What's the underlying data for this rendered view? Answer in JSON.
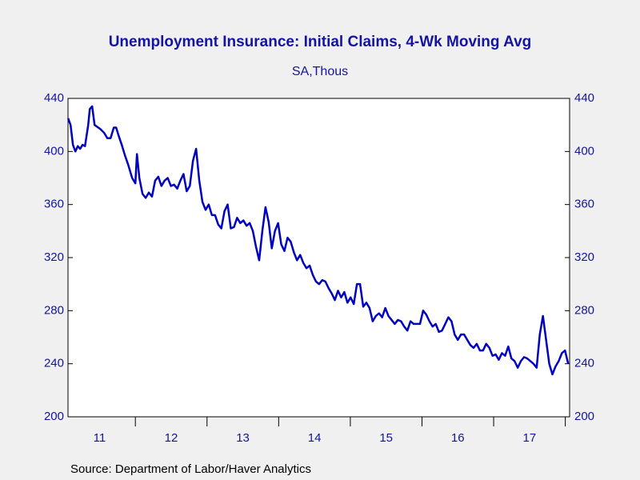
{
  "chart_data": {
    "type": "line",
    "title": "Unemployment Insurance: Initial Claims, 4-Wk Moving Avg",
    "subtitle": "SA,Thous",
    "source": "Source:  Department of Labor/Haver Analytics",
    "x": [
      2011.062,
      2011.096,
      2011.129,
      2011.163,
      2011.196,
      2011.23,
      2011.263,
      2011.297,
      2011.342,
      2011.364,
      2011.397,
      2011.431,
      2011.509,
      2011.565,
      2011.609,
      2011.654,
      2011.699,
      2011.732,
      2011.766,
      2011.81,
      2011.855,
      2011.9,
      2011.955,
      2012.0,
      2012.022,
      2012.056,
      2012.1,
      2012.144,
      2012.188,
      2012.232,
      2012.276,
      2012.32,
      2012.364,
      2012.408,
      2012.452,
      2012.496,
      2012.54,
      2012.584,
      2012.628,
      2012.672,
      2012.716,
      2012.76,
      2012.804,
      2012.848,
      2012.892,
      2012.936,
      2012.98,
      2013.024,
      2013.068,
      2013.112,
      2013.156,
      2013.2,
      2013.244,
      2013.288,
      2013.332,
      2013.376,
      2013.42,
      2013.464,
      2013.508,
      2013.552,
      2013.596,
      2013.64,
      2013.684,
      2013.728,
      2013.772,
      2013.816,
      2013.86,
      2013.904,
      2013.948,
      2013.992,
      2014.036,
      2014.08,
      2014.124,
      2014.168,
      2014.212,
      2014.256,
      2014.3,
      2014.344,
      2014.388,
      2014.432,
      2014.476,
      2014.52,
      2014.564,
      2014.608,
      2014.652,
      2014.696,
      2014.74,
      2014.784,
      2014.828,
      2014.872,
      2014.916,
      2014.96,
      2015.004,
      2015.048,
      2015.092,
      2015.136,
      2015.18,
      2015.224,
      2015.268,
      2015.312,
      2015.356,
      2015.4,
      2015.444,
      2015.488,
      2015.532,
      2015.576,
      2015.62,
      2015.664,
      2015.708,
      2015.752,
      2015.796,
      2015.84,
      2015.884,
      2015.928,
      2015.972,
      2016.016,
      2016.06,
      2016.104,
      2016.148,
      2016.192,
      2016.236,
      2016.28,
      2016.324,
      2016.368,
      2016.412,
      2016.456,
      2016.5,
      2016.544,
      2016.588,
      2016.632,
      2016.676,
      2016.72,
      2016.764,
      2016.808,
      2016.852,
      2016.896,
      2016.94,
      2016.984,
      2017.028,
      2017.072,
      2017.116,
      2017.16,
      2017.204,
      2017.248,
      2017.292,
      2017.336,
      2017.38,
      2017.424,
      2017.468,
      2017.512,
      2017.556,
      2017.6,
      2017.644,
      2017.688,
      2017.732,
      2017.776,
      2017.82,
      2017.864,
      2017.908,
      2017.952,
      2017.996,
      2018.04
    ],
    "series": [
      {
        "color": "#0000c0",
        "values": [
          425,
          420,
          405,
          400,
          404,
          402,
          405,
          404,
          420,
          432,
          434,
          420,
          417,
          414,
          410,
          410,
          418,
          418,
          412,
          405,
          397,
          390,
          380,
          376,
          398,
          380,
          368,
          365,
          369,
          366,
          378,
          381,
          374,
          378,
          380,
          374,
          375,
          372,
          378,
          383,
          370,
          374,
          393,
          402,
          378,
          362,
          356,
          360,
          352,
          352,
          345,
          342,
          355,
          360,
          342,
          343,
          350,
          346,
          348,
          344,
          346,
          340,
          328,
          318,
          340,
          358,
          347,
          327,
          340,
          346,
          330,
          325,
          335,
          332,
          324,
          318,
          322,
          316,
          312,
          314,
          307,
          302,
          300,
          303,
          302,
          297,
          293,
          288,
          295,
          290,
          294,
          286,
          290,
          285,
          300,
          300,
          283,
          286,
          282,
          272,
          276,
          278,
          275,
          282,
          276,
          273,
          270,
          273,
          272,
          268,
          265,
          272,
          270,
          270,
          270,
          280,
          277,
          272,
          268,
          270,
          264,
          265,
          270,
          275,
          272,
          262,
          258,
          262,
          262,
          258,
          254,
          252,
          255,
          250,
          250,
          255,
          252,
          246,
          247,
          243,
          248,
          246,
          253,
          244,
          242,
          237,
          242,
          245,
          244,
          242,
          240,
          237,
          262,
          276,
          258,
          240,
          232,
          238,
          242,
          248,
          250,
          240
        ]
      }
    ],
    "xlim": [
      2011.06,
      2018.06
    ],
    "xticks": [
      2012,
      2013,
      2014,
      2015,
      2016,
      2017,
      2018
    ],
    "xlabels": [
      {
        "value": 2011.5,
        "label": "11"
      },
      {
        "value": 2012.5,
        "label": "12"
      },
      {
        "value": 2013.5,
        "label": "13"
      },
      {
        "value": 2014.5,
        "label": "14"
      },
      {
        "value": 2015.5,
        "label": "15"
      },
      {
        "value": 2016.5,
        "label": "16"
      },
      {
        "value": 2017.5,
        "label": "17"
      }
    ],
    "ylim": [
      200,
      440
    ],
    "yticks": [
      200,
      240,
      280,
      320,
      360,
      400,
      440
    ],
    "y2lim": [
      200,
      440
    ],
    "y2ticks": [
      200,
      240,
      280,
      320,
      360,
      400,
      440
    ]
  }
}
